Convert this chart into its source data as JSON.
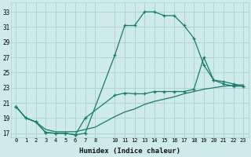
{
  "xlabel": "Humidex (Indice chaleur)",
  "bg_color": "#ceeaea",
  "grid_color": "#aacfcf",
  "line_color": "#1a7a6e",
  "xlim": [
    -0.5,
    23.5
  ],
  "ylim": [
    16.5,
    34.2
  ],
  "xticks": [
    0,
    1,
    2,
    3,
    4,
    5,
    6,
    7,
    8,
    10,
    11,
    12,
    13,
    14,
    15,
    16,
    17,
    18,
    19,
    20,
    21,
    22,
    23
  ],
  "yticks": [
    17,
    19,
    21,
    23,
    25,
    27,
    29,
    31,
    33
  ],
  "line1_x": [
    0,
    1,
    2,
    3,
    4,
    5,
    6,
    7,
    10,
    11,
    12,
    13,
    14,
    15,
    16,
    17,
    18,
    19,
    20,
    21,
    22,
    23
  ],
  "line1_y": [
    20.5,
    19.0,
    18.5,
    17.1,
    17.0,
    17.0,
    16.8,
    17.0,
    27.3,
    31.2,
    31.2,
    33.0,
    33.0,
    32.5,
    32.5,
    31.2,
    29.5,
    26.0,
    24.0,
    23.5,
    23.2,
    23.2
  ],
  "line2_x": [
    0,
    1,
    2,
    3,
    4,
    5,
    6,
    7,
    10,
    11,
    12,
    13,
    14,
    15,
    16,
    17,
    18,
    19,
    20,
    21,
    22,
    23
  ],
  "line2_y": [
    20.5,
    19.0,
    18.5,
    17.1,
    17.0,
    17.0,
    16.8,
    19.0,
    22.0,
    22.3,
    22.2,
    22.2,
    22.5,
    22.5,
    22.5,
    22.5,
    22.8,
    27.0,
    24.0,
    23.8,
    23.5,
    23.2
  ],
  "line3_x": [
    0,
    1,
    2,
    3,
    4,
    5,
    6,
    7,
    8,
    10,
    11,
    12,
    13,
    14,
    15,
    16,
    17,
    18,
    19,
    20,
    21,
    22,
    23
  ],
  "line3_y": [
    20.5,
    19.0,
    18.5,
    17.5,
    17.2,
    17.2,
    17.2,
    17.5,
    17.8,
    19.2,
    19.8,
    20.2,
    20.8,
    21.2,
    21.5,
    21.8,
    22.2,
    22.5,
    22.8,
    23.0,
    23.2,
    23.3,
    23.4
  ]
}
